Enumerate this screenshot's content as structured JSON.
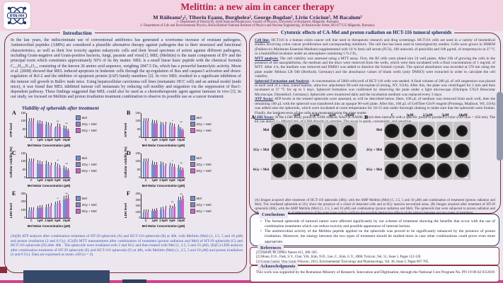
{
  "header": {
    "logo_text": "IFIN-HH",
    "title": "Melittin: a new aim in cancer therapy",
    "authors": "M Răileanu¹٫², Tiberiu Eşanu, Burghelea², George-Bogdan², Liviu Crăciun², M Bacalum²",
    "affiliation1": "1- Department of Electricity, Solid State and Biophysics, Faculty of Physics, University of Bucharest, Măgurele, Romania",
    "affiliation2": "2- Department of Life and Environmental Physics, Horia Hulubei National Institute of Physics and Nuclear Engineering, 30 Reactorului Street, RO-077125 Măgurele, Romania;"
  },
  "left_panel": {
    "section_title": "Introduction",
    "intro_text": "In the last years, the indiscriminate use of conventional antibiotics has generated a worrisome increase of resistant pathogens. Antimicrobial peptides (AMPs) are considered a plausible alternative therapy against pathogens due to their structural and functional characteristics, as well as their low toxicity against eukaryotic cells and their broad spectrum of action against different pathogens, including Gram-negative and Gram-positive bacteria, fungi, parasite and virus[1]. MEL (Melittin) is the main component of BV and the principal toxin which constitutes approximately 50% of its dry matter. MEL is a small linear basic peptide with the chemical formula C₁₃₁H₂₂₉N₃₉O₃₁, consisting of the known 26 amino acid sequence, weighing 2847.5 Da, which has a powerful haemolytic activity. Moon et al. (2008) showed that MEL induced apoptosis in leukemic cells through the up-regulation of Bax and caspase3 activation and down-regulation of Bcl-2 and the inhibitor of apoptosis protein (IAP) family members [2]. In vivo MEL resulted in a significant inhibition of the tumour cell growth in Balb/c nude mice. Using hepatocellular carcinoma cell lines (metastatic HCC cell) and an animal model (nude mice), it was found that MEL inhibited tumour cell metastasis by reducing cell motility and migration via the suppression of Rac1-dependent pathway. These findings suggested that MEL could also be used as a chemotherapeutic agent against tumours in vivo [3]. In our study, we focused on Melittin and proton irradiation treatment combination to observe its possible use as a cancer treatment.",
    "figure_section_title": "Viability of spheroids after treatment",
    "figure_caption": "(A)(B) ATP analysis after combination treatment of HT-29 spheroids (A) and HCT-116 spheroids (B) at 48h, with Melittin (Mel) (1, 2.5, 5 and 10 μM) and proton irradiation (2 and 6 Gy). (C)(D) MTT measurement after combination of treatment (proton radiation and Mel) of HT-29 spheroids (C) and HCT-116 spheroids (D) after 48h . The spheroids were irradiated with 2 and 6Gy and then treated with Mel (1, 2.5, 5 and 10 μM). (E)(G) LDH analysis after combination treatment of HT-29 spheroids (E) and HCT-116 spheroids (F) at 48h, with Melittin (Mel) (1, 2.5, 5 and 10 μM) and proton irradiation (2 and 6 Gy). Data are expressed as mean ±SD (n = 3)."
  },
  "right_panel": {
    "section_title": "Cytotoxic effects of CA-Mel and proton radiation on HCT-116 tumoral spheroids",
    "methods": [
      {
        "label": "Cell line:",
        "text": " HCT116 is a human colon cancer cell line used in therapeutic research and drug screenings. HCT116 cells are used in a variety of biomedical studies involving colon cancer proliferation and corresponding inhibitors. The cell line has been used in tumorigenicity studies. Cells were grown in DMEM (Dulbecco's Minimum Essential Medium) supplemented with 10 % fetal calf serum (FCS), 100 units/mL of penicillin and 100 μg/mL of streptomycin at 37 °C in a humidified incubator under an atmosphere containing 5 % CO₂."
      },
      {
        "label": "MTT analysis:",
        "text": " The cell viability was assessed using a MTT assay. First, the BJ cells were plated into 24 well plates. After 24h of growing the cells in the presence of the nanoplatforms, the medium and the discs were removed from the wells, which were then incubated with a final concentration of 1 mg/mL of MTT. After 4 h, the medium was removed and DMSO was added to dissolve the formed crystals. The optical absorbance was recorded at 570 nm using the plate reader Mithras LB 940 (Berthold, Germany) and the absorbance values of blank wells (only DMSO) were extracted in order to calculate the cell viability."
      },
      {
        "label": "Spheroid Formation and Analysis",
        "text": " : A concentration of 5000 cells/well of HCT-116 cells was seeded. A final volume of 200 μL of cell suspension was placed in each well of a clear, round bottom, ultra-low attachment 96-well microplate (Corning, NY, USA). After this, the plate was centrifuged for 2 min and then incubated at 37 °C for up to 5 days. Spheroid formation was confirmed by observing the plate under a light microscope (Olympus CX23 Binocular Microscope, Düsseldorf, Germany). Spheroids were monitored daily and the incubation medium was replaced every 3 days."
      },
      {
        "label": "ATP Assay:",
        "text": " ATP levels in the treated spheroids were assessed, as will be described below. Here, 100 μL of medium was removed from each well, then the remaining 100 μL with the spheroid was transferred into an opaque 96-well plate. After this, 100 μL of CellTiter-Glo® reagent (Promega, Madison, WI, USA) was added onto the spheroids, which were incubated at room temperature for 10-15 min under thorough shaking to make sure that the spheroids were broken. Finally, the luminescence of the cells was measured using the plate reader."
      },
      {
        "label": "LDH Assay:",
        "text": " In the LDH assay protocol, LDH reduces NAD to NADH, which then interacts with a specific probe to produce a color (OD max = 450 nm). The kit can detect 1 - 100 mU/mL of LDH directly in samples. The assay is quick, convenient, and sensitive."
      }
    ],
    "panels": {
      "panel_a_label": "A",
      "panel_b_label": "B",
      "column_headers": [
        "C",
        "1μM",
        "2.5μM",
        "5μM",
        "10μM"
      ],
      "row_labels": [
        "Mel",
        "2Gy + Mel",
        "6Gy + Mel"
      ],
      "caption": "(A) Images acquired after treatment of HCT-116 spheroids (48h), with the AMP Melittin (Mel) (1, 2.5, 5 and 10 μM) and combination of treatment (proton radiation and Mel). The irradiated spheroids at 2Gy show the presence of a cloud of detached cells and at 6Gy massive necrotized areas. (B) Images acquired after treatment of HT-29 spheroids (48h), with the AMP Melittin (Mel) (1, 2.5, 5 and 10 μM) and combination (proton radiation and Mel). The spheroids that were subjected to proton radiation and Mel show a massive level of deterioration of the outer layer which confirms the possible destructive effects of the sinergy between our two types of treatment."
    },
    "conclusions": {
      "title": "Conclusions",
      "bullets": [
        "The formed spheroids of tumoral nature were affected significantly by our scheme of treatment showing the benefits that occur with the use of combination treatments which can reduce toxicity and possible appearance of internal lesions.",
        "The antimicrobial activity of the Melittin peptide applied on the spheroids was proved to be significantly enhanced by the presence of proton irradiation. Moreover, the sinergy between the two types of treatment should be studied more in case other combinations could prove even more appropriate."
      ]
    },
    "references": {
      "title": "References",
      "items": [
        "[1] Zasloff, M. (2002) Nature 415, 389–395.",
        "[2] Moon, D.O., Park, S.Y., Choi, Y.H., Kim, N.D., Lee, C., Kim, G.Y., 2008, Toxicon ,Vol. 51, Issue 1, Pages 112-120.",
        "[3] Goran Gajski, Vera Garaj-Vrhovac, 2013, Environmental Toxicology and Pharmacology, Vol. 36, Issue 2, Pages 697-705."
      ]
    },
    "acknowledgments": {
      "title": "Acknowledgments",
      "text": "This work was supported by the Romanian Ministry of Research, Innovation and Digitisation, through the National Core Program No. PN 19 06 02 03/2019"
    }
  },
  "chart_data": [
    {
      "id": "A",
      "type": "bar",
      "ylabel": "ATP level",
      "xlabel": "Mel Molar Concentration (μM)",
      "categories": [
        "C",
        "1μM",
        "2.5μM",
        "5μM",
        "10μM"
      ],
      "ylim": [
        0,
        150
      ],
      "yticks": [
        0,
        50,
        100,
        150
      ],
      "legend_position": "right",
      "sig": [
        "",
        "",
        "",
        "***",
        "***"
      ],
      "series": [
        {
          "name": "Mel",
          "color": "#6e93cc",
          "values": [
            100,
            88,
            78,
            52,
            58
          ]
        },
        {
          "name": "2Gy + Mel",
          "color": "#8d7ec6",
          "values": [
            100,
            85,
            74,
            72,
            55
          ]
        },
        {
          "name": "6Gy + Mel",
          "color": "#cf62c4",
          "values": [
            100,
            82,
            72,
            68,
            40
          ]
        }
      ]
    },
    {
      "id": "B",
      "type": "bar",
      "ylabel": "ATP level",
      "xlabel": "Mel Molar Concentration (μM)",
      "categories": [
        "C",
        "1μM",
        "2.5μM",
        "5μM",
        "10μM"
      ],
      "ylim": [
        0,
        150
      ],
      "yticks": [
        0,
        50,
        100,
        150
      ],
      "legend_position": "right",
      "sig": [
        "",
        "",
        "",
        "*",
        "***"
      ],
      "series": [
        {
          "name": "Mel",
          "color": "#6e93cc",
          "values": [
            100,
            92,
            78,
            75,
            65
          ]
        },
        {
          "name": "2Gy + Mel",
          "color": "#8d7ec6",
          "values": [
            100,
            85,
            75,
            70,
            48
          ]
        },
        {
          "name": "6Gy + Mel",
          "color": "#cf62c4",
          "values": [
            100,
            88,
            80,
            68,
            38
          ]
        }
      ]
    },
    {
      "id": "C",
      "type": "bar",
      "ylabel": "Cellular viability (%)",
      "xlabel": "Mel Molar Concentration (μM)",
      "categories": [
        "C",
        "1μM",
        "2.5μM",
        "5μM",
        "10μM"
      ],
      "ylim": [
        0,
        150
      ],
      "yticks": [
        0,
        50,
        100,
        150
      ],
      "legend_position": "right",
      "sig": [
        "",
        "",
        "",
        "**",
        "***"
      ],
      "series": [
        {
          "name": "Mel",
          "color": "#6e93cc",
          "values": [
            100,
            90,
            85,
            78,
            58
          ]
        },
        {
          "name": "2Gy + Mel",
          "color": "#8d7ec6",
          "values": [
            100,
            85,
            80,
            72,
            50
          ]
        },
        {
          "name": "6Gy + Mel",
          "color": "#cf62c4",
          "values": [
            100,
            82,
            75,
            62,
            45
          ]
        }
      ]
    },
    {
      "id": "D",
      "type": "bar",
      "ylabel": "Cellular viability (%)",
      "xlabel": "Mel Molar Concentration (μM)",
      "categories": [
        "C",
        "1μM",
        "2.5μM",
        "5μM",
        "10μM"
      ],
      "ylim": [
        0,
        150
      ],
      "yticks": [
        0,
        50,
        100,
        150
      ],
      "legend_position": "right",
      "sig": [
        "",
        "",
        "",
        "*",
        "***"
      ],
      "series": [
        {
          "name": "Mel",
          "color": "#6e93cc",
          "values": [
            100,
            85,
            82,
            75,
            62
          ]
        },
        {
          "name": "2Gy + Mel",
          "color": "#8d7ec6",
          "values": [
            100,
            80,
            78,
            70,
            50
          ]
        },
        {
          "name": "6Gy + Mel",
          "color": "#cf62c4",
          "values": [
            100,
            78,
            72,
            68,
            48
          ]
        }
      ]
    },
    {
      "id": "E",
      "type": "bar",
      "ylabel": "LDH level",
      "xlabel": "Mel Molar Concentration (μM)",
      "categories": [
        "C",
        "1μM",
        "2.5μM",
        "5μM",
        "10μM"
      ],
      "ylim": [
        0,
        300
      ],
      "yticks": [
        0,
        100,
        200,
        300
      ],
      "legend_position": "right",
      "sig": [
        "",
        "",
        "",
        "**",
        "***"
      ],
      "series": [
        {
          "name": "Mel",
          "color": "#6e93cc",
          "values": [
            100,
            120,
            135,
            165,
            230
          ]
        },
        {
          "name": "2Gy + Mel",
          "color": "#8d7ec6",
          "values": [
            100,
            125,
            140,
            175,
            240
          ]
        },
        {
          "name": "6Gy + Mel",
          "color": "#cf62c4",
          "values": [
            100,
            130,
            150,
            185,
            250
          ]
        }
      ]
    },
    {
      "id": "F",
      "type": "bar",
      "ylabel": "LDH level",
      "xlabel": "Mel Molar Concentration (μM)",
      "categories": [
        "C",
        "1μM",
        "2.5μM",
        "5μM",
        "10μM"
      ],
      "ylim": [
        0,
        400
      ],
      "yticks": [
        0,
        100,
        200,
        300,
        400
      ],
      "legend_position": "right",
      "sig": [
        "",
        "",
        "",
        "***",
        "***"
      ],
      "series": [
        {
          "name": "Mel",
          "color": "#6e93cc",
          "values": [
            100,
            115,
            140,
            165,
            290
          ]
        },
        {
          "name": "2Gy + Mel",
          "color": "#8d7ec6",
          "values": [
            100,
            120,
            145,
            160,
            300
          ]
        },
        {
          "name": "6Gy + Mel",
          "color": "#cf62c4",
          "values": [
            100,
            130,
            155,
            185,
            315
          ]
        }
      ]
    }
  ],
  "colors": {
    "title_accent": "#b41e48",
    "box_border_maroon": "#7b2e3f",
    "navy_text": "#1d2a5e",
    "caption_blue": "#2857b8",
    "bar_mel": "#6e93cc",
    "bar_2gy_mel": "#8d7ec6",
    "bar_6gy_mel": "#cf62c4",
    "header_band": "#f3d2e1",
    "page_background": "#ece6ee",
    "bottom_strip": "#d6428f"
  }
}
